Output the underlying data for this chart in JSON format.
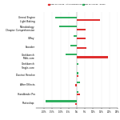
{
  "categories": [
    "Unreal Engine\nLight Baking",
    "Microbiology\nChapter Comprehension",
    "V-Ray",
    "Encoder",
    "Geekbench\nMulti-core",
    "Geekbench\nSingle-core",
    "Davinci Resolve",
    "After Effects",
    "Handbrake Pro",
    "Photoshop"
  ],
  "intel_perf": [
    14.0,
    5.5,
    5.5,
    5.8,
    19.0,
    0.0,
    1.0,
    -1.0,
    2.0,
    -1.0
  ],
  "ryzen_perf": [
    -13.0,
    -11.0,
    -2.0,
    -4.0,
    -7.0,
    1.0,
    1.0,
    2.0,
    1.0,
    -19.0
  ],
  "bar_color_intel": "#e03030",
  "bar_color_ryzen": "#30b060",
  "background_color": "#ffffff",
  "legend_intel": "New Microcode - Intel Performance",
  "legend_ryzen": "New Microcode - Ryzen",
  "xlim": [
    -25,
    25
  ],
  "xticks": [
    -20,
    -15,
    -10,
    -5,
    0,
    5,
    10,
    15,
    20,
    25
  ],
  "xtick_labels": [
    "-20%",
    "-15%",
    "-10%",
    "-5%",
    "0%",
    "5%",
    "10%",
    "15%",
    "20%",
    "25%"
  ]
}
